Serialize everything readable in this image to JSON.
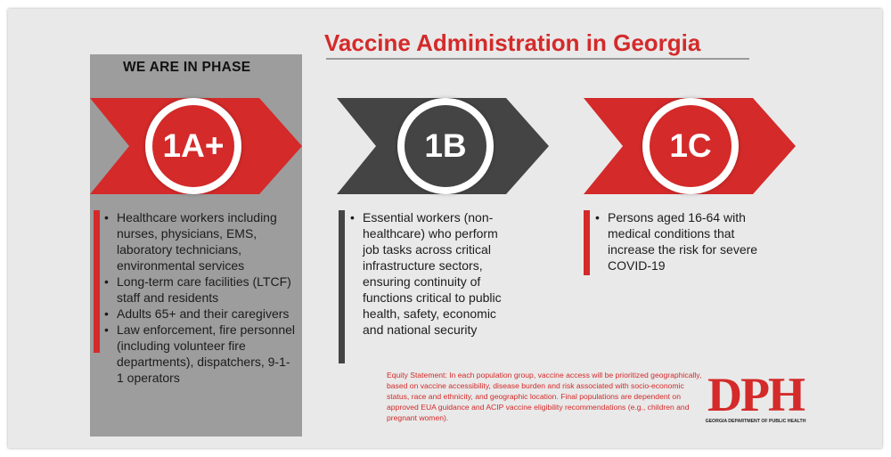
{
  "title": "Vaccine Administration in Georgia",
  "current_phase_label": "WE ARE IN PHASE",
  "phases": [
    {
      "badge": "1A+",
      "color": "#d42a2a",
      "bullets": [
        "Healthcare workers including nurses, physicians, EMS, laboratory technicians, environmental services",
        "Long-term care facilities (LTCF) staff and residents",
        "Adults 65+ and their caregivers",
        "Law enforcement, fire personnel (including volunteer fire departments), dispatchers, 9-1-1 operators"
      ]
    },
    {
      "badge": "1B",
      "color": "#444444",
      "bullets": [
        "Essential workers (non-healthcare) who perform job tasks across critical infrastructure sectors, ensuring continuity of functions critical to public health, safety, economic and national security"
      ]
    },
    {
      "badge": "1C",
      "color": "#d42a2a",
      "bullets": [
        "Persons aged 16-64 with medical conditions that increase the risk for severe COVID-19"
      ]
    }
  ],
  "equity_statement": "Equity Statement: In each population group, vaccine access will be prioritized geographically, based on vaccine accessibility, disease burden and risk associated with socio-economic status, race and ethnicity, and geographic location. Final populations are dependent on approved EUA guidance and ACIP vaccine eligibility recommendations (e.g., children and pregnant women).",
  "logo": {
    "letters": "DPH",
    "subtitle": "GEORGIA DEPARTMENT OF PUBLIC HEALTH"
  }
}
